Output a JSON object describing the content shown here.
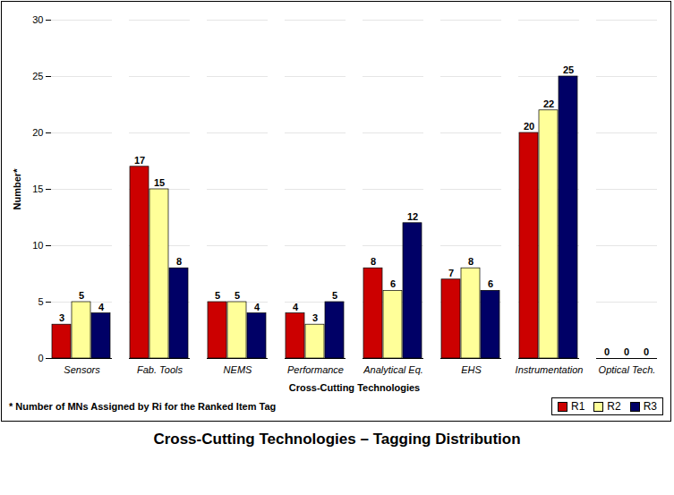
{
  "chart_data": {
    "type": "bar",
    "title": "Cross-Cutting Technologies – Tagging Distribution",
    "x_label": "Cross-Cutting Technologies",
    "y_label": "Number*",
    "annotations": [
      "* Number of MNs Assigned by Ri for the Ranked Item Tag"
    ],
    "categories": [
      "Sensors",
      "Fab. Tools",
      "NEMS",
      "Performance",
      "Analytical Eq.",
      "EHS",
      "Instrumentation",
      "Optical Tech."
    ],
    "series": [
      {
        "name": "R1",
        "color": "#cc0000",
        "values": [
          3,
          17,
          5,
          4,
          8,
          7,
          20,
          0
        ]
      },
      {
        "name": "R2",
        "color": "#ffff99",
        "values": [
          5,
          15,
          5,
          3,
          6,
          8,
          22,
          0
        ]
      },
      {
        "name": "R3",
        "color": "#000066",
        "values": [
          4,
          8,
          4,
          5,
          12,
          6,
          25,
          0
        ]
      }
    ],
    "ylim": [
      0,
      30
    ],
    "yticks": [
      0,
      5,
      10,
      15,
      20,
      25,
      30
    ],
    "grid": true,
    "data_labels": true,
    "legend": "bottom-right"
  }
}
